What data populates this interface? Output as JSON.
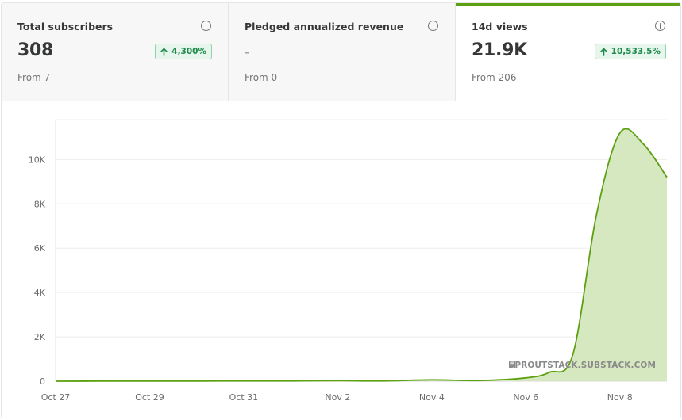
{
  "cards": [
    {
      "title": "Total subscribers",
      "value": "308",
      "badge": "4,300%",
      "from": "From 7"
    },
    {
      "title": "Pledged annualized revenue",
      "value": "-",
      "badge": null,
      "from": "From 0"
    },
    {
      "title": "14d views",
      "value": "21.9K",
      "badge": "10,533.5%",
      "from": "From 206",
      "selected": true
    }
  ],
  "colors": {
    "accent": "#5da012",
    "area_fill": "#d6e8c0",
    "badge_text": "#1f8a4c",
    "badge_bg": "#e6f6ec"
  },
  "watermark": "SPROUTSTACK.SUBSTACK.COM",
  "chart_data": {
    "type": "area",
    "title": "",
    "xlabel": "",
    "ylabel": "",
    "y_tick_labels": [
      "0",
      "2K",
      "4K",
      "6K",
      "8K",
      "10K"
    ],
    "y_ticks": [
      0,
      2000,
      4000,
      6000,
      8000,
      10000
    ],
    "ylim": [
      0,
      11800
    ],
    "x_tick_labels": [
      "Oct 27",
      "Oct 29",
      "Oct 31",
      "Nov 2",
      "Nov 4",
      "Nov 6",
      "Nov 8"
    ],
    "x_tick_days": [
      0,
      2,
      4,
      6,
      8,
      10,
      12
    ],
    "xlim": [
      0,
      13
    ],
    "grid": true,
    "series": [
      {
        "x": [
          0,
          1,
          2,
          3,
          4,
          5,
          6,
          7,
          8,
          9,
          10,
          10.5,
          11,
          11.5,
          12,
          12.5,
          13
        ],
        "values": [
          0,
          5,
          5,
          8,
          10,
          12,
          20,
          10,
          60,
          30,
          150,
          400,
          1200,
          7500,
          11200,
          10700,
          9200
        ]
      }
    ]
  }
}
